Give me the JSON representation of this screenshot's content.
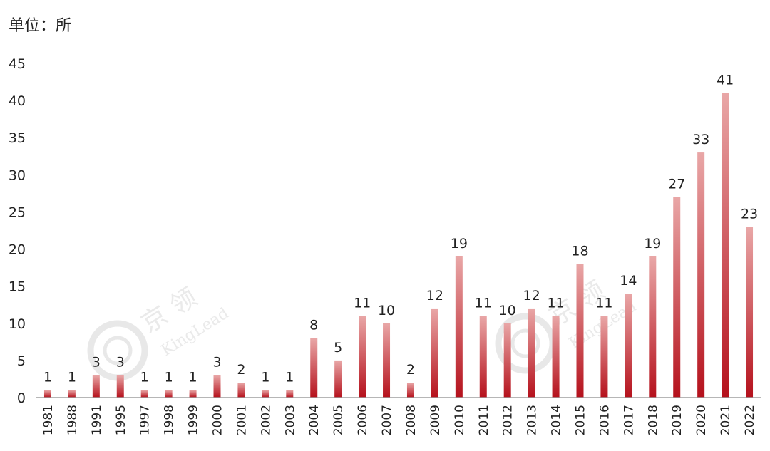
{
  "unit_label": "单位：所",
  "watermark": {
    "cn": "京 领",
    "en": "KingLead"
  },
  "colors": {
    "bar_top": "#e9a7a7",
    "bar_bottom": "#b5111c",
    "axis": "#9e9e9e"
  },
  "chart_data": {
    "type": "bar",
    "title": "",
    "xlabel": "",
    "ylabel": "",
    "ylim": [
      0,
      45
    ],
    "yticks": [
      0,
      5,
      10,
      15,
      20,
      25,
      30,
      35,
      40,
      45
    ],
    "grid": false,
    "categories": [
      "1981",
      "1988",
      "1991",
      "1995",
      "1997",
      "1998",
      "1999",
      "2000",
      "2001",
      "2002",
      "2003",
      "2004",
      "2005",
      "2006",
      "2007",
      "2008",
      "2009",
      "2010",
      "2011",
      "2012",
      "2013",
      "2014",
      "2015",
      "2016",
      "2017",
      "2018",
      "2019",
      "2020",
      "2021",
      "2022"
    ],
    "values": [
      1,
      1,
      3,
      3,
      1,
      1,
      1,
      3,
      2,
      1,
      1,
      8,
      5,
      11,
      10,
      2,
      12,
      19,
      11,
      10,
      12,
      11,
      18,
      11,
      14,
      19,
      27,
      33,
      41,
      23
    ]
  }
}
